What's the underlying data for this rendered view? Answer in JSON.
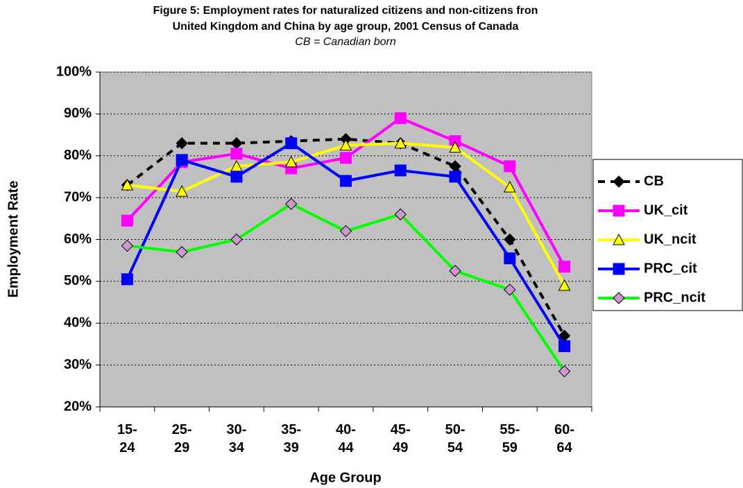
{
  "chart_data": {
    "type": "line",
    "title": [
      "Figure 5: Employment rates for naturalized citizens and non-citizens fron",
      "United Kingdom and China by age group, 2001 Census of Canada"
    ],
    "subtitle": "CB = Canadian born",
    "x_label": "Age Group",
    "y_label": "Employment Rate",
    "categories": [
      "15-24",
      "25-29",
      "30-34",
      "35-39",
      "40-44",
      "45-49",
      "50-54",
      "55-59",
      "60-64"
    ],
    "series": [
      {
        "name": "CB",
        "color": "#000000",
        "marker": "diamond",
        "marker_color": "#000000",
        "dash": true,
        "values": [
          73,
          83,
          83,
          83.5,
          84,
          83,
          77.5,
          60,
          37
        ]
      },
      {
        "name": "UK_cit",
        "color": "#ff00ff",
        "marker": "square",
        "marker_color": "#ff00ff",
        "values": [
          64.5,
          78.5,
          80.5,
          77,
          79.5,
          89,
          83.5,
          77.5,
          53.5
        ]
      },
      {
        "name": "UK_ncit",
        "color": "#ffff00",
        "marker": "triangle",
        "marker_color": "#ffff00",
        "values": [
          73,
          71.5,
          77.5,
          78.5,
          82.5,
          83,
          82,
          72.5,
          49
        ]
      },
      {
        "name": "PRC_cit",
        "color": "#0000ff",
        "marker": "square",
        "marker_color": "#0000ff",
        "values": [
          50.5,
          79,
          75,
          83,
          74,
          76.5,
          75,
          55.5,
          34.5
        ]
      },
      {
        "name": "PRC_ncit",
        "color": "#00ff00",
        "marker": "diamond",
        "marker_color": "#cc99cc",
        "values": [
          58.5,
          57,
          60,
          68.5,
          62,
          66,
          52.5,
          48,
          28.5
        ]
      }
    ],
    "ylim": [
      20,
      100
    ],
    "yticks": [
      {
        "value": 20,
        "label": "20%"
      },
      {
        "value": 30,
        "label": "30%"
      },
      {
        "value": 40,
        "label": "40%"
      },
      {
        "value": 50,
        "label": "50%"
      },
      {
        "value": 60,
        "label": "60%"
      },
      {
        "value": 70,
        "label": "70%"
      },
      {
        "value": 80,
        "label": "80%"
      },
      {
        "value": 90,
        "label": "90%"
      },
      {
        "value": 100,
        "label": "100%"
      }
    ],
    "grid": true,
    "legend": "right",
    "plot_background": "#c0c0c0"
  }
}
